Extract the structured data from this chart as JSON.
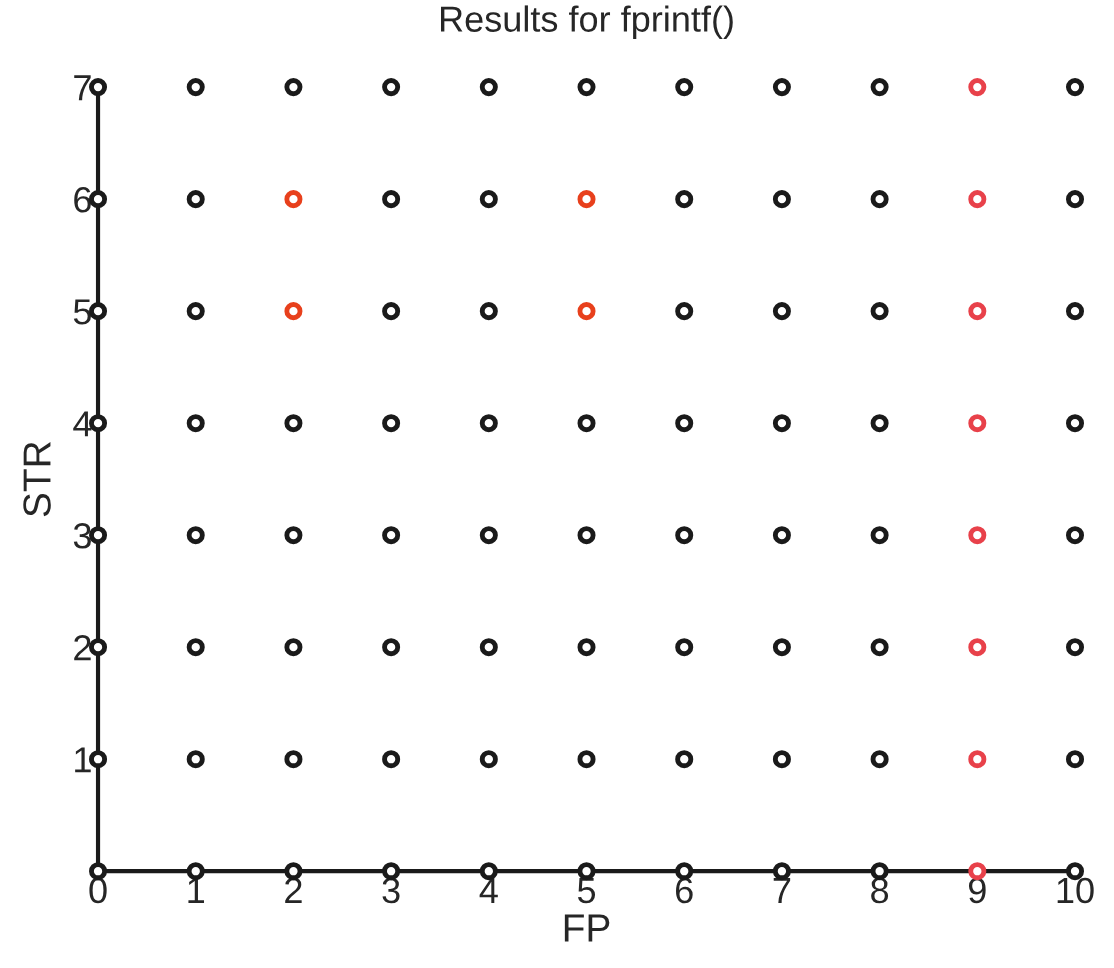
{
  "chart_data": {
    "type": "scatter",
    "title": "Results for fprintf()",
    "xlabel": "FP",
    "ylabel": "STR",
    "xlim": [
      0,
      10
    ],
    "ylim": [
      0,
      7
    ],
    "xticks": [
      0,
      1,
      2,
      3,
      4,
      5,
      6,
      7,
      8,
      9,
      10
    ],
    "yticks": [
      1,
      2,
      3,
      4,
      5,
      6,
      7
    ],
    "marker": "circle",
    "grid": false,
    "legend": false,
    "series": [
      {
        "color": "#1a1a1a",
        "x": [
          0,
          0,
          0,
          0,
          0,
          0,
          0,
          0,
          1,
          1,
          1,
          1,
          1,
          1,
          1,
          1,
          2,
          2,
          2,
          2,
          2,
          2,
          3,
          3,
          3,
          3,
          3,
          3,
          3,
          3,
          4,
          4,
          4,
          4,
          4,
          4,
          4,
          4,
          5,
          5,
          5,
          5,
          5,
          5,
          6,
          6,
          6,
          6,
          6,
          6,
          6,
          6,
          7,
          7,
          7,
          7,
          7,
          7,
          7,
          7,
          8,
          8,
          8,
          8,
          8,
          8,
          8,
          8,
          10,
          10,
          10,
          10,
          10,
          10,
          10,
          10
        ],
        "values": [
          0,
          1,
          2,
          3,
          4,
          5,
          6,
          7,
          0,
          1,
          2,
          3,
          4,
          5,
          6,
          7,
          0,
          1,
          2,
          3,
          4,
          7,
          0,
          1,
          2,
          3,
          4,
          5,
          6,
          7,
          0,
          1,
          2,
          3,
          4,
          5,
          6,
          7,
          0,
          1,
          2,
          3,
          4,
          7,
          0,
          1,
          2,
          3,
          4,
          5,
          6,
          7,
          0,
          1,
          2,
          3,
          4,
          5,
          6,
          7,
          0,
          1,
          2,
          3,
          4,
          5,
          6,
          7,
          0,
          1,
          2,
          3,
          4,
          5,
          6,
          7
        ]
      },
      {
        "color": "#e8401c",
        "x": [
          2,
          2,
          5,
          5
        ],
        "values": [
          5,
          6,
          5,
          6
        ]
      },
      {
        "color": "#e8414a",
        "x": [
          9,
          9,
          9,
          9,
          9,
          9,
          9,
          9
        ],
        "values": [
          0,
          1,
          2,
          3,
          4,
          5,
          6,
          7
        ]
      }
    ]
  }
}
